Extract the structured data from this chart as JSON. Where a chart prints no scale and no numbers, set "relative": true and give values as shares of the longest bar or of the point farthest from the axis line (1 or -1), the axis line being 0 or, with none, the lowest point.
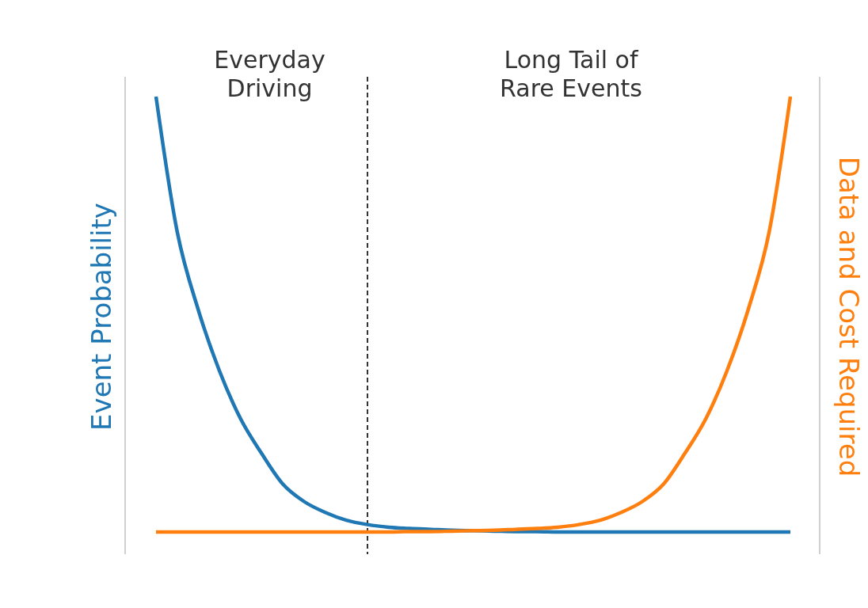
{
  "chart_data": {
    "type": "line",
    "relative": true,
    "ylabel": "Event Probability",
    "y2label": "Data and Cost Required",
    "marker": "none",
    "line_style": "solid",
    "categories": [
      null,
      null,
      null,
      null,
      null,
      null,
      null,
      null,
      null,
      null,
      null,
      null,
      null,
      null,
      null,
      null,
      null,
      null,
      null,
      null,
      null,
      null,
      null,
      null,
      null,
      null,
      null,
      null,
      null,
      null,
      null
    ],
    "series": [
      {
        "color": "#1f77b4",
        "values": [
          1,
          0.69,
          0.51,
          0.37,
          0.26,
          0.18,
          0.11,
          0.07,
          0.045,
          0.027,
          0.017,
          0.011,
          0.008,
          0.006,
          0.004,
          0.003,
          0.002,
          0.001,
          0.001,
          0,
          0,
          0,
          0,
          0,
          0,
          0,
          0,
          0,
          0,
          0,
          0
        ]
      },
      {
        "color": "#ff7f0e",
        "values": [
          0,
          0,
          0,
          0,
          0,
          0,
          0,
          0,
          0,
          0,
          0,
          0,
          0.001,
          0.001,
          0.002,
          0.003,
          0.004,
          0.006,
          0.008,
          0.011,
          0.017,
          0.027,
          0.045,
          0.07,
          0.11,
          0.18,
          0.26,
          0.37,
          0.51,
          0.69,
          1
        ]
      }
    ],
    "annotations": [
      "Everyday Driving",
      "Long Tail of Rare Events"
    ]
  }
}
